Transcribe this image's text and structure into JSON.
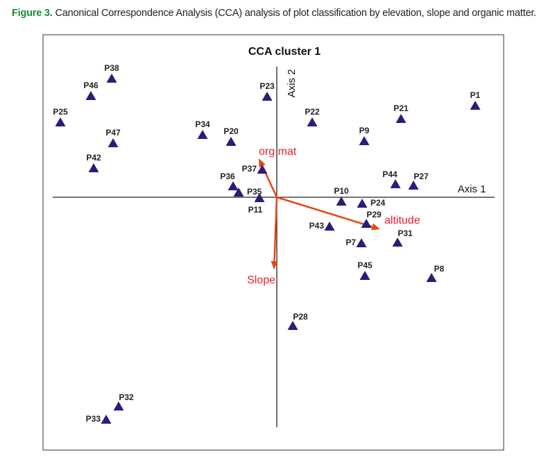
{
  "caption": {
    "label": "Figure 3.",
    "text": " Canonical Correspondence Analysis (CCA) analysis of plot classification by elevation, slope and organic matter."
  },
  "chart_data": {
    "type": "scatter",
    "title": "CCA cluster 1",
    "xlabel": "Axis 1",
    "ylabel": "Axis 2",
    "xlim": [
      -3.37,
      3.27
    ],
    "ylim": [
      -3.64,
      2.34
    ],
    "x_axis_extent": [
      -3.23,
      3.14
    ],
    "y_axis_extent": [
      -3.31,
      1.88
    ],
    "marker_color": "#2e1a78",
    "arrow_color": "#e8450f",
    "arrow_label_color": "#e8202a",
    "points": [
      {
        "label": "P38",
        "x": -2.38,
        "y": 1.71,
        "label_pos": "above"
      },
      {
        "label": "P46",
        "x": -2.68,
        "y": 1.46,
        "label_pos": "above"
      },
      {
        "label": "P25",
        "x": -3.12,
        "y": 1.08,
        "label_pos": "above"
      },
      {
        "label": "P47",
        "x": -2.36,
        "y": 0.78,
        "label_pos": "above"
      },
      {
        "label": "P42",
        "x": -2.64,
        "y": 0.42,
        "label_pos": "above"
      },
      {
        "label": "P34",
        "x": -1.07,
        "y": 0.9,
        "label_pos": "above"
      },
      {
        "label": "P20",
        "x": -0.66,
        "y": 0.8,
        "label_pos": "above"
      },
      {
        "label": "P23",
        "x": -0.14,
        "y": 1.45,
        "label_pos": "above"
      },
      {
        "label": "P22",
        "x": 0.51,
        "y": 1.08,
        "label_pos": "above"
      },
      {
        "label": "P21",
        "x": 1.79,
        "y": 1.13,
        "label_pos": "above"
      },
      {
        "label": "P1",
        "x": 2.86,
        "y": 1.32,
        "label_pos": "above"
      },
      {
        "label": "P9",
        "x": 1.26,
        "y": 0.81,
        "label_pos": "above"
      },
      {
        "label": "P37",
        "x": -0.21,
        "y": 0.4,
        "label_pos": "left"
      },
      {
        "label": "P36",
        "x": -0.63,
        "y": 0.16,
        "label_pos": "above-left"
      },
      {
        "label": "P35",
        "x": -0.55,
        "y": 0.07,
        "label_pos": "right"
      },
      {
        "label": "P11",
        "x": -0.25,
        "y": -0.01,
        "label_pos": "below"
      },
      {
        "label": "P44",
        "x": 1.71,
        "y": 0.19,
        "label_pos": "above-left"
      },
      {
        "label": "P27",
        "x": 1.97,
        "y": 0.17,
        "label_pos": "above-right"
      },
      {
        "label": "P10",
        "x": 0.93,
        "y": -0.06,
        "label_pos": "above"
      },
      {
        "label": "P24",
        "x": 1.23,
        "y": -0.09,
        "label_pos": "right"
      },
      {
        "label": "P29",
        "x": 1.29,
        "y": -0.38,
        "label_pos": "above-right"
      },
      {
        "label": "P43",
        "x": 0.76,
        "y": -0.42,
        "label_pos": "left"
      },
      {
        "label": "P7",
        "x": 1.22,
        "y": -0.66,
        "label_pos": "left"
      },
      {
        "label": "P31",
        "x": 1.74,
        "y": -0.65,
        "label_pos": "above-right"
      },
      {
        "label": "P45",
        "x": 1.27,
        "y": -1.13,
        "label_pos": "above"
      },
      {
        "label": "P8",
        "x": 2.23,
        "y": -1.16,
        "label_pos": "above-right"
      },
      {
        "label": "P28",
        "x": 0.23,
        "y": -1.85,
        "label_pos": "above-right"
      },
      {
        "label": "P32",
        "x": -2.28,
        "y": -3.01,
        "label_pos": "above-right"
      },
      {
        "label": "P33",
        "x": -2.46,
        "y": -3.2,
        "label_pos": "left"
      }
    ],
    "vectors": [
      {
        "label": "org mat",
        "x": -0.26,
        "y": 0.56,
        "label_pos": "above-right"
      },
      {
        "label": "altitude",
        "x": 1.49,
        "y": -0.46,
        "label_pos": "right"
      },
      {
        "label": "Slope",
        "x": -0.04,
        "y": -1.04,
        "label_pos": "below-left"
      }
    ]
  }
}
